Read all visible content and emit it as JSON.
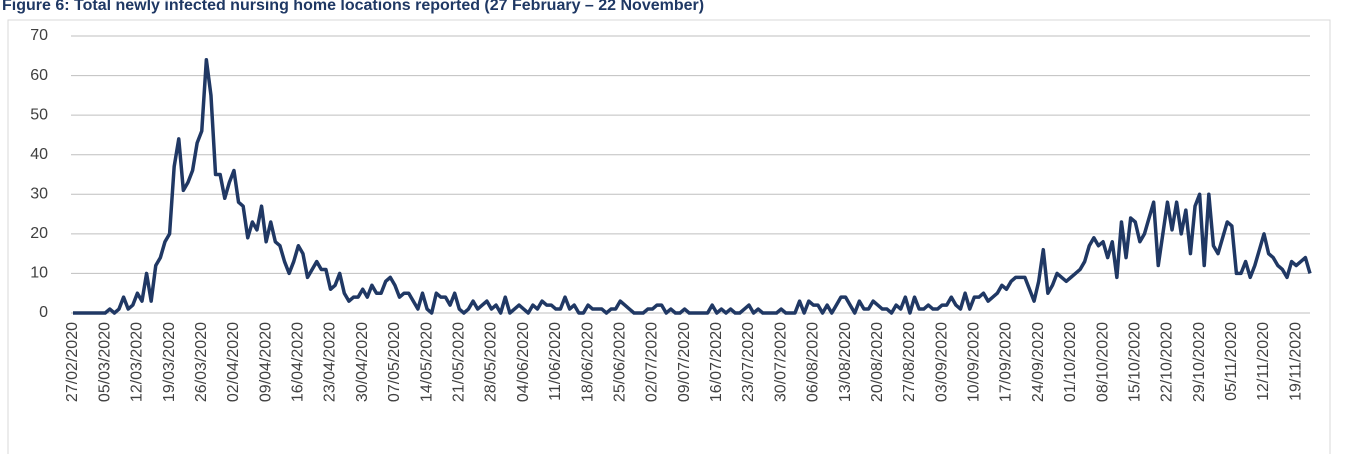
{
  "chart_data": {
    "type": "line",
    "title": "Figure 6: Total newly infected nursing home locations reported (27 February – 22 November)",
    "categories": [
      "27/02/2020",
      null,
      null,
      null,
      null,
      null,
      null,
      "05/03/2020",
      null,
      null,
      null,
      null,
      null,
      null,
      "12/03/2020",
      null,
      null,
      null,
      null,
      null,
      null,
      "19/03/2020",
      null,
      null,
      null,
      null,
      null,
      null,
      "26/03/2020",
      null,
      null,
      null,
      null,
      null,
      null,
      "02/04/2020",
      null,
      null,
      null,
      null,
      null,
      null,
      "09/04/2020",
      null,
      null,
      null,
      null,
      null,
      null,
      "16/04/2020",
      null,
      null,
      null,
      null,
      null,
      null,
      "23/04/2020",
      null,
      null,
      null,
      null,
      null,
      null,
      "30/04/2020",
      null,
      null,
      null,
      null,
      null,
      null,
      "07/05/2020",
      null,
      null,
      null,
      null,
      null,
      null,
      "14/05/2020",
      null,
      null,
      null,
      null,
      null,
      null,
      "21/05/2020",
      null,
      null,
      null,
      null,
      null,
      null,
      "28/05/2020",
      null,
      null,
      null,
      null,
      null,
      null,
      "04/06/2020",
      null,
      null,
      null,
      null,
      null,
      null,
      "11/06/2020",
      null,
      null,
      null,
      null,
      null,
      null,
      "18/06/2020",
      null,
      null,
      null,
      null,
      null,
      null,
      "25/06/2020",
      null,
      null,
      null,
      null,
      null,
      null,
      "02/07/2020",
      null,
      null,
      null,
      null,
      null,
      null,
      "09/07/2020",
      null,
      null,
      null,
      null,
      null,
      null,
      "16/07/2020",
      null,
      null,
      null,
      null,
      null,
      null,
      "23/07/2020",
      null,
      null,
      null,
      null,
      null,
      null,
      "30/07/2020",
      null,
      null,
      null,
      null,
      null,
      null,
      "06/08/2020",
      null,
      null,
      null,
      null,
      null,
      null,
      "13/08/2020",
      null,
      null,
      null,
      null,
      null,
      null,
      "20/08/2020",
      null,
      null,
      null,
      null,
      null,
      null,
      "27/08/2020",
      null,
      null,
      null,
      null,
      null,
      null,
      "03/09/2020",
      null,
      null,
      null,
      null,
      null,
      null,
      "10/09/2020",
      null,
      null,
      null,
      null,
      null,
      null,
      "17/09/2020",
      null,
      null,
      null,
      null,
      null,
      null,
      "24/09/2020",
      null,
      null,
      null,
      null,
      null,
      null,
      "01/10/2020",
      null,
      null,
      null,
      null,
      null,
      null,
      "08/10/2020",
      null,
      null,
      null,
      null,
      null,
      null,
      "15/10/2020",
      null,
      null,
      null,
      null,
      null,
      null,
      "22/10/2020",
      null,
      null,
      null,
      null,
      null,
      null,
      "29/10/2020",
      null,
      null,
      null,
      null,
      null,
      null,
      "05/11/2020",
      null,
      null,
      null,
      null,
      null,
      null,
      "12/11/2020",
      null,
      null,
      null,
      null,
      null,
      null,
      "19/11/2020",
      null,
      null,
      null
    ],
    "series": [
      {
        "color": "#203864",
        "values": [
          0,
          0,
          0,
          0,
          0,
          0,
          0,
          0,
          1,
          0,
          1,
          4,
          1,
          2,
          5,
          3,
          10,
          3,
          12,
          14,
          18,
          20,
          37,
          44,
          31,
          33,
          36,
          43,
          46,
          64,
          55,
          35,
          35,
          29,
          33,
          36,
          28,
          27,
          19,
          23,
          21,
          27,
          18,
          23,
          18,
          17,
          13,
          10,
          13,
          17,
          15,
          9,
          11,
          13,
          11,
          11,
          6,
          7,
          10,
          5,
          3,
          4,
          4,
          6,
          4,
          7,
          5,
          5,
          8,
          9,
          7,
          4,
          5,
          5,
          3,
          1,
          5,
          1,
          0,
          5,
          4,
          4,
          2,
          5,
          1,
          0,
          1,
          3,
          1,
          2,
          3,
          1,
          2,
          0,
          4,
          0,
          1,
          2,
          1,
          0,
          2,
          1,
          3,
          2,
          2,
          1,
          1,
          4,
          1,
          2,
          0,
          0,
          2,
          1,
          1,
          1,
          0,
          1,
          1,
          3,
          2,
          1,
          0,
          0,
          0,
          1,
          1,
          2,
          2,
          0,
          1,
          0,
          0,
          1,
          0,
          0,
          0,
          0,
          0,
          2,
          0,
          1,
          0,
          1,
          0,
          0,
          1,
          2,
          0,
          1,
          0,
          0,
          0,
          0,
          1,
          0,
          0,
          0,
          3,
          0,
          3,
          2,
          2,
          0,
          2,
          0,
          2,
          4,
          4,
          2,
          0,
          3,
          1,
          1,
          3,
          2,
          1,
          1,
          0,
          2,
          1,
          4,
          0,
          4,
          1,
          1,
          2,
          1,
          1,
          2,
          2,
          4,
          2,
          1,
          5,
          1,
          4,
          4,
          5,
          3,
          4,
          5,
          7,
          6,
          8,
          9,
          9,
          9,
          6,
          3,
          8,
          16,
          5,
          7,
          10,
          9,
          8,
          9,
          10,
          11,
          13,
          17,
          19,
          17,
          18,
          14,
          18,
          9,
          23,
          14,
          24,
          23,
          18,
          20,
          24,
          28,
          12,
          20,
          28,
          21,
          28,
          20,
          26,
          15,
          27,
          30,
          12,
          30,
          17,
          15,
          19,
          23,
          22,
          10,
          10,
          13,
          9,
          12,
          16,
          20,
          15,
          14,
          12,
          11,
          9,
          13,
          12,
          13,
          14,
          10
        ]
      }
    ],
    "ylim": [
      0,
      70
    ],
    "yticks": [
      0,
      10,
      20,
      30,
      40,
      50,
      60,
      70
    ],
    "grid": true
  }
}
